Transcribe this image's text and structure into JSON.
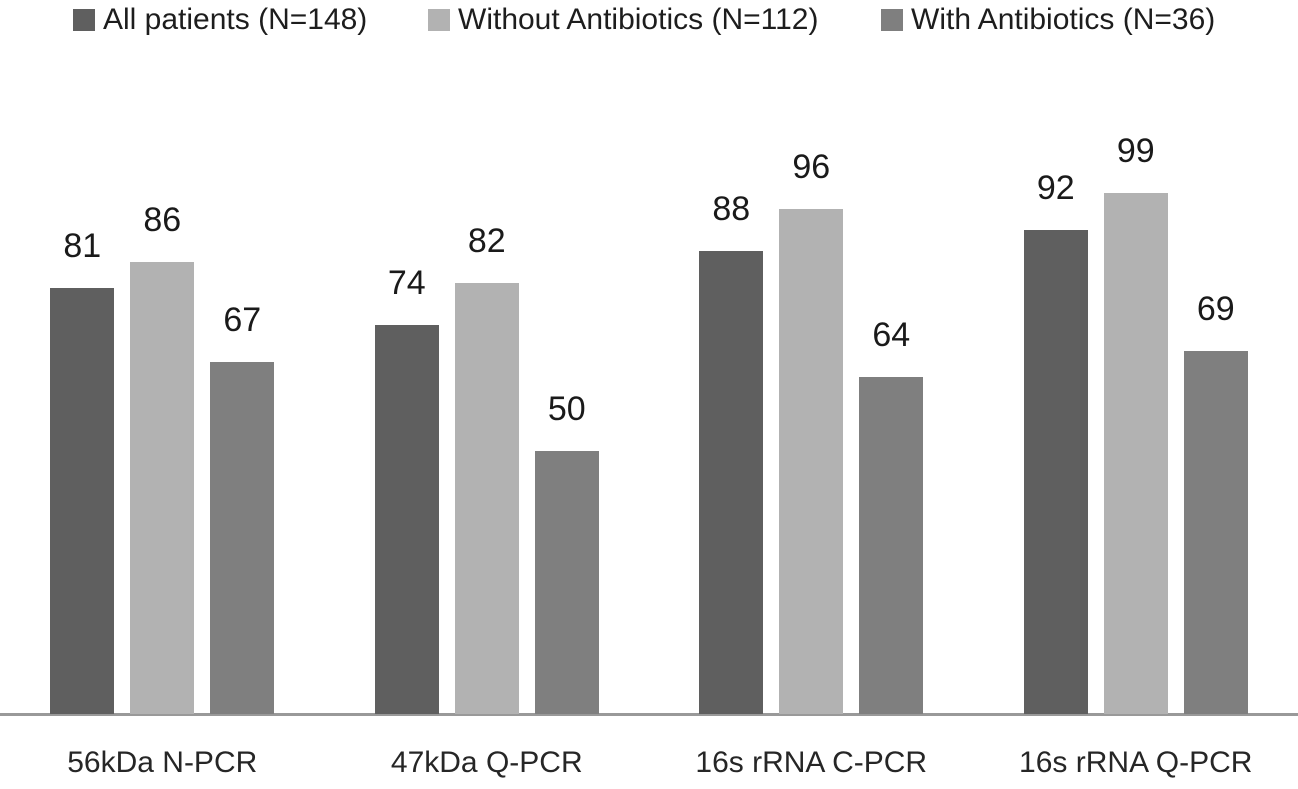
{
  "chart_data": {
    "type": "bar",
    "title": "",
    "categories": [
      "56kDa N-PCR",
      "47kDa Q-PCR",
      "16s rRNA C-PCR",
      "16s rRNA Q-PCR"
    ],
    "series": [
      {
        "name": "All patients (N=148)",
        "color": "#5f5f5f",
        "values": [
          81,
          74,
          88,
          92
        ]
      },
      {
        "name": "Without Antibiotics (N=112)",
        "color": "#b2b2b2",
        "values": [
          86,
          82,
          96,
          99
        ]
      },
      {
        "name": "With Antibiotics (N=36)",
        "color": "#7f7f7f",
        "values": [
          67,
          50,
          64,
          69
        ]
      }
    ],
    "value_labels": [
      [
        81,
        86,
        67
      ],
      [
        74,
        82,
        50
      ],
      [
        88,
        96,
        64
      ],
      [
        92,
        99,
        69
      ]
    ],
    "xlabel": "",
    "ylabel": "",
    "ylim": [
      0,
      100
    ],
    "grid": false,
    "y_axis_visible": false,
    "legend_position": "top",
    "axis_line_color": "#999999"
  }
}
